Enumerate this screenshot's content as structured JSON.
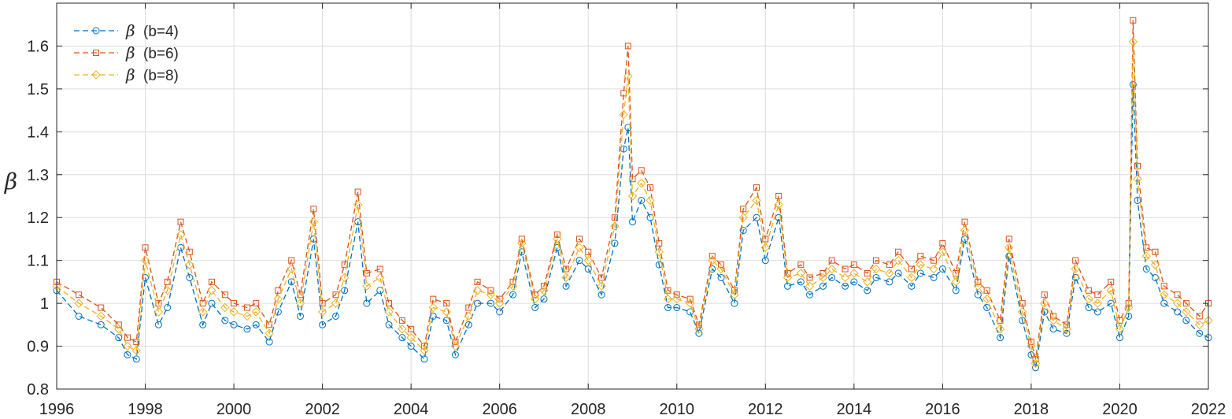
{
  "chart_data": {
    "type": "line",
    "title": "",
    "xlabel": "",
    "ylabel": "β",
    "xlim": [
      1996,
      2022
    ],
    "ylim": [
      0.8,
      1.7
    ],
    "xticks": [
      1996,
      1998,
      2000,
      2002,
      2004,
      2006,
      2008,
      2010,
      2012,
      2014,
      2016,
      2018,
      2020,
      2022
    ],
    "yticks": [
      0.8,
      0.9,
      1.0,
      1.1,
      1.2,
      1.3,
      1.4,
      1.5,
      1.6
    ],
    "ytick_labels": [
      "0.8",
      "0.9",
      "1",
      "1.1",
      "1.2",
      "1.3",
      "1.4",
      "1.5",
      "1.6"
    ],
    "grid": true,
    "legend_position": "top-left",
    "series": [
      {
        "name": "(b=4)",
        "symbol": "β",
        "color": "#0072BD",
        "marker": "circle",
        "line_style": "dashed",
        "x": [
          1996.0,
          1996.5,
          1997.0,
          1997.4,
          1997.6,
          1997.8,
          1998.0,
          1998.3,
          1998.5,
          1998.8,
          1999.0,
          1999.3,
          1999.5,
          1999.8,
          2000.0,
          2000.3,
          2000.5,
          2000.8,
          2001.0,
          2001.3,
          2001.5,
          2001.8,
          2002.0,
          2002.3,
          2002.5,
          2002.8,
          2003.0,
          2003.3,
          2003.5,
          2003.8,
          2004.0,
          2004.3,
          2004.5,
          2004.8,
          2005.0,
          2005.3,
          2005.5,
          2005.8,
          2006.0,
          2006.3,
          2006.5,
          2006.8,
          2007.0,
          2007.3,
          2007.5,
          2007.8,
          2008.0,
          2008.3,
          2008.6,
          2008.8,
          2008.9,
          2009.0,
          2009.2,
          2009.4,
          2009.6,
          2009.8,
          2010.0,
          2010.3,
          2010.5,
          2010.8,
          2011.0,
          2011.3,
          2011.5,
          2011.8,
          2012.0,
          2012.3,
          2012.5,
          2012.8,
          2013.0,
          2013.3,
          2013.5,
          2013.8,
          2014.0,
          2014.3,
          2014.5,
          2014.8,
          2015.0,
          2015.3,
          2015.5,
          2015.8,
          2016.0,
          2016.3,
          2016.5,
          2016.8,
          2017.0,
          2017.3,
          2017.5,
          2017.8,
          2018.0,
          2018.1,
          2018.3,
          2018.5,
          2018.8,
          2019.0,
          2019.3,
          2019.5,
          2019.8,
          2020.0,
          2020.2,
          2020.3,
          2020.4,
          2020.6,
          2020.8,
          2021.0,
          2021.3,
          2021.5,
          2021.8,
          2022.0
        ],
        "y": [
          1.03,
          0.97,
          0.95,
          0.92,
          0.88,
          0.87,
          1.06,
          0.95,
          0.99,
          1.13,
          1.06,
          0.95,
          1.0,
          0.96,
          0.95,
          0.94,
          0.95,
          0.91,
          0.98,
          1.05,
          0.97,
          1.15,
          0.95,
          0.97,
          1.03,
          1.19,
          1.0,
          1.03,
          0.95,
          0.92,
          0.9,
          0.87,
          0.97,
          0.96,
          0.88,
          0.95,
          1.0,
          1.0,
          0.98,
          1.02,
          1.12,
          0.99,
          1.01,
          1.13,
          1.04,
          1.1,
          1.08,
          1.02,
          1.14,
          1.36,
          1.41,
          1.19,
          1.24,
          1.2,
          1.09,
          0.99,
          0.99,
          0.98,
          0.93,
          1.08,
          1.06,
          1.0,
          1.17,
          1.2,
          1.1,
          1.2,
          1.04,
          1.05,
          1.02,
          1.04,
          1.06,
          1.04,
          1.05,
          1.03,
          1.06,
          1.05,
          1.07,
          1.04,
          1.07,
          1.06,
          1.08,
          1.03,
          1.15,
          1.02,
          0.99,
          0.92,
          1.11,
          0.96,
          0.88,
          0.85,
          0.98,
          0.94,
          0.93,
          1.06,
          0.99,
          0.98,
          1.0,
          0.92,
          0.97,
          1.51,
          1.24,
          1.08,
          1.06,
          1.0,
          0.98,
          0.96,
          0.93,
          0.92
        ]
      },
      {
        "name": "(b=6)",
        "symbol": "β",
        "color": "#D95319",
        "marker": "square",
        "line_style": "dashed",
        "x": [
          1996.0,
          1996.5,
          1997.0,
          1997.4,
          1997.6,
          1997.8,
          1998.0,
          1998.3,
          1998.5,
          1998.8,
          1999.0,
          1999.3,
          1999.5,
          1999.8,
          2000.0,
          2000.3,
          2000.5,
          2000.8,
          2001.0,
          2001.3,
          2001.5,
          2001.8,
          2002.0,
          2002.3,
          2002.5,
          2002.8,
          2003.0,
          2003.3,
          2003.5,
          2003.8,
          2004.0,
          2004.3,
          2004.5,
          2004.8,
          2005.0,
          2005.3,
          2005.5,
          2005.8,
          2006.0,
          2006.3,
          2006.5,
          2006.8,
          2007.0,
          2007.3,
          2007.5,
          2007.8,
          2008.0,
          2008.3,
          2008.6,
          2008.8,
          2008.9,
          2009.0,
          2009.2,
          2009.4,
          2009.6,
          2009.8,
          2010.0,
          2010.3,
          2010.5,
          2010.8,
          2011.0,
          2011.3,
          2011.5,
          2011.8,
          2012.0,
          2012.3,
          2012.5,
          2012.8,
          2013.0,
          2013.3,
          2013.5,
          2013.8,
          2014.0,
          2014.3,
          2014.5,
          2014.8,
          2015.0,
          2015.3,
          2015.5,
          2015.8,
          2016.0,
          2016.3,
          2016.5,
          2016.8,
          2017.0,
          2017.3,
          2017.5,
          2017.8,
          2018.0,
          2018.1,
          2018.3,
          2018.5,
          2018.8,
          2019.0,
          2019.3,
          2019.5,
          2019.8,
          2020.0,
          2020.2,
          2020.3,
          2020.4,
          2020.6,
          2020.8,
          2021.0,
          2021.3,
          2021.5,
          2021.8,
          2022.0
        ],
        "y": [
          1.05,
          1.02,
          0.99,
          0.95,
          0.92,
          0.91,
          1.13,
          1.0,
          1.05,
          1.19,
          1.12,
          1.0,
          1.05,
          1.02,
          1.0,
          0.99,
          1.0,
          0.95,
          1.03,
          1.1,
          1.02,
          1.22,
          1.0,
          1.02,
          1.09,
          1.26,
          1.07,
          1.08,
          1.0,
          0.96,
          0.94,
          0.9,
          1.01,
          1.0,
          0.91,
          0.99,
          1.05,
          1.03,
          1.01,
          1.05,
          1.15,
          1.02,
          1.04,
          1.16,
          1.08,
          1.15,
          1.12,
          1.06,
          1.2,
          1.49,
          1.6,
          1.29,
          1.31,
          1.27,
          1.14,
          1.03,
          1.02,
          1.01,
          0.95,
          1.11,
          1.09,
          1.03,
          1.22,
          1.27,
          1.15,
          1.25,
          1.07,
          1.09,
          1.06,
          1.07,
          1.1,
          1.08,
          1.09,
          1.07,
          1.1,
          1.09,
          1.12,
          1.08,
          1.11,
          1.1,
          1.14,
          1.07,
          1.19,
          1.05,
          1.03,
          0.96,
          1.15,
          1.0,
          0.91,
          0.87,
          1.02,
          0.97,
          0.95,
          1.1,
          1.03,
          1.02,
          1.05,
          0.96,
          1.0,
          1.66,
          1.32,
          1.13,
          1.12,
          1.04,
          1.02,
          1.0,
          0.97,
          1.0
        ]
      },
      {
        "name": "(b=8)",
        "symbol": "β",
        "color": "#EDB120",
        "marker": "diamond",
        "line_style": "dashed",
        "x": [
          1996.0,
          1996.5,
          1997.0,
          1997.4,
          1997.6,
          1997.8,
          1998.0,
          1998.3,
          1998.5,
          1998.8,
          1999.0,
          1999.3,
          1999.5,
          1999.8,
          2000.0,
          2000.3,
          2000.5,
          2000.8,
          2001.0,
          2001.3,
          2001.5,
          2001.8,
          2002.0,
          2002.3,
          2002.5,
          2002.8,
          2003.0,
          2003.3,
          2003.5,
          2003.8,
          2004.0,
          2004.3,
          2004.5,
          2004.8,
          2005.0,
          2005.3,
          2005.5,
          2005.8,
          2006.0,
          2006.3,
          2006.5,
          2006.8,
          2007.0,
          2007.3,
          2007.5,
          2007.8,
          2008.0,
          2008.3,
          2008.6,
          2008.8,
          2008.9,
          2009.0,
          2009.2,
          2009.4,
          2009.6,
          2009.8,
          2010.0,
          2010.3,
          2010.5,
          2010.8,
          2011.0,
          2011.3,
          2011.5,
          2011.8,
          2012.0,
          2012.3,
          2012.5,
          2012.8,
          2013.0,
          2013.3,
          2013.5,
          2013.8,
          2014.0,
          2014.3,
          2014.5,
          2014.8,
          2015.0,
          2015.3,
          2015.5,
          2015.8,
          2016.0,
          2016.3,
          2016.5,
          2016.8,
          2017.0,
          2017.3,
          2017.5,
          2017.8,
          2018.0,
          2018.1,
          2018.3,
          2018.5,
          2018.8,
          2019.0,
          2019.3,
          2019.5,
          2019.8,
          2020.0,
          2020.2,
          2020.3,
          2020.4,
          2020.6,
          2020.8,
          2021.0,
          2021.3,
          2021.5,
          2021.8,
          2022.0
        ],
        "y": [
          1.04,
          1.0,
          0.97,
          0.94,
          0.9,
          0.89,
          1.1,
          0.98,
          1.03,
          1.16,
          1.09,
          0.98,
          1.03,
          0.99,
          0.98,
          0.97,
          0.98,
          0.93,
          1.01,
          1.08,
          1.0,
          1.19,
          0.98,
          1.0,
          1.06,
          1.23,
          1.04,
          1.06,
          0.98,
          0.94,
          0.92,
          0.89,
          0.99,
          0.98,
          0.9,
          0.97,
          1.03,
          1.02,
          1.0,
          1.04,
          1.14,
          1.01,
          1.03,
          1.15,
          1.06,
          1.13,
          1.1,
          1.04,
          1.18,
          1.44,
          1.53,
          1.25,
          1.28,
          1.24,
          1.12,
          1.01,
          1.01,
          1.0,
          0.94,
          1.1,
          1.08,
          1.02,
          1.2,
          1.24,
          1.13,
          1.23,
          1.06,
          1.07,
          1.04,
          1.06,
          1.08,
          1.06,
          1.07,
          1.05,
          1.08,
          1.07,
          1.1,
          1.06,
          1.09,
          1.08,
          1.12,
          1.05,
          1.17,
          1.04,
          1.01,
          0.94,
          1.13,
          0.98,
          0.9,
          0.86,
          1.0,
          0.96,
          0.94,
          1.08,
          1.01,
          1.0,
          1.03,
          0.94,
          0.99,
          1.61,
          1.29,
          1.11,
          1.09,
          1.02,
          1.0,
          0.98,
          0.95,
          0.96
        ]
      }
    ]
  }
}
